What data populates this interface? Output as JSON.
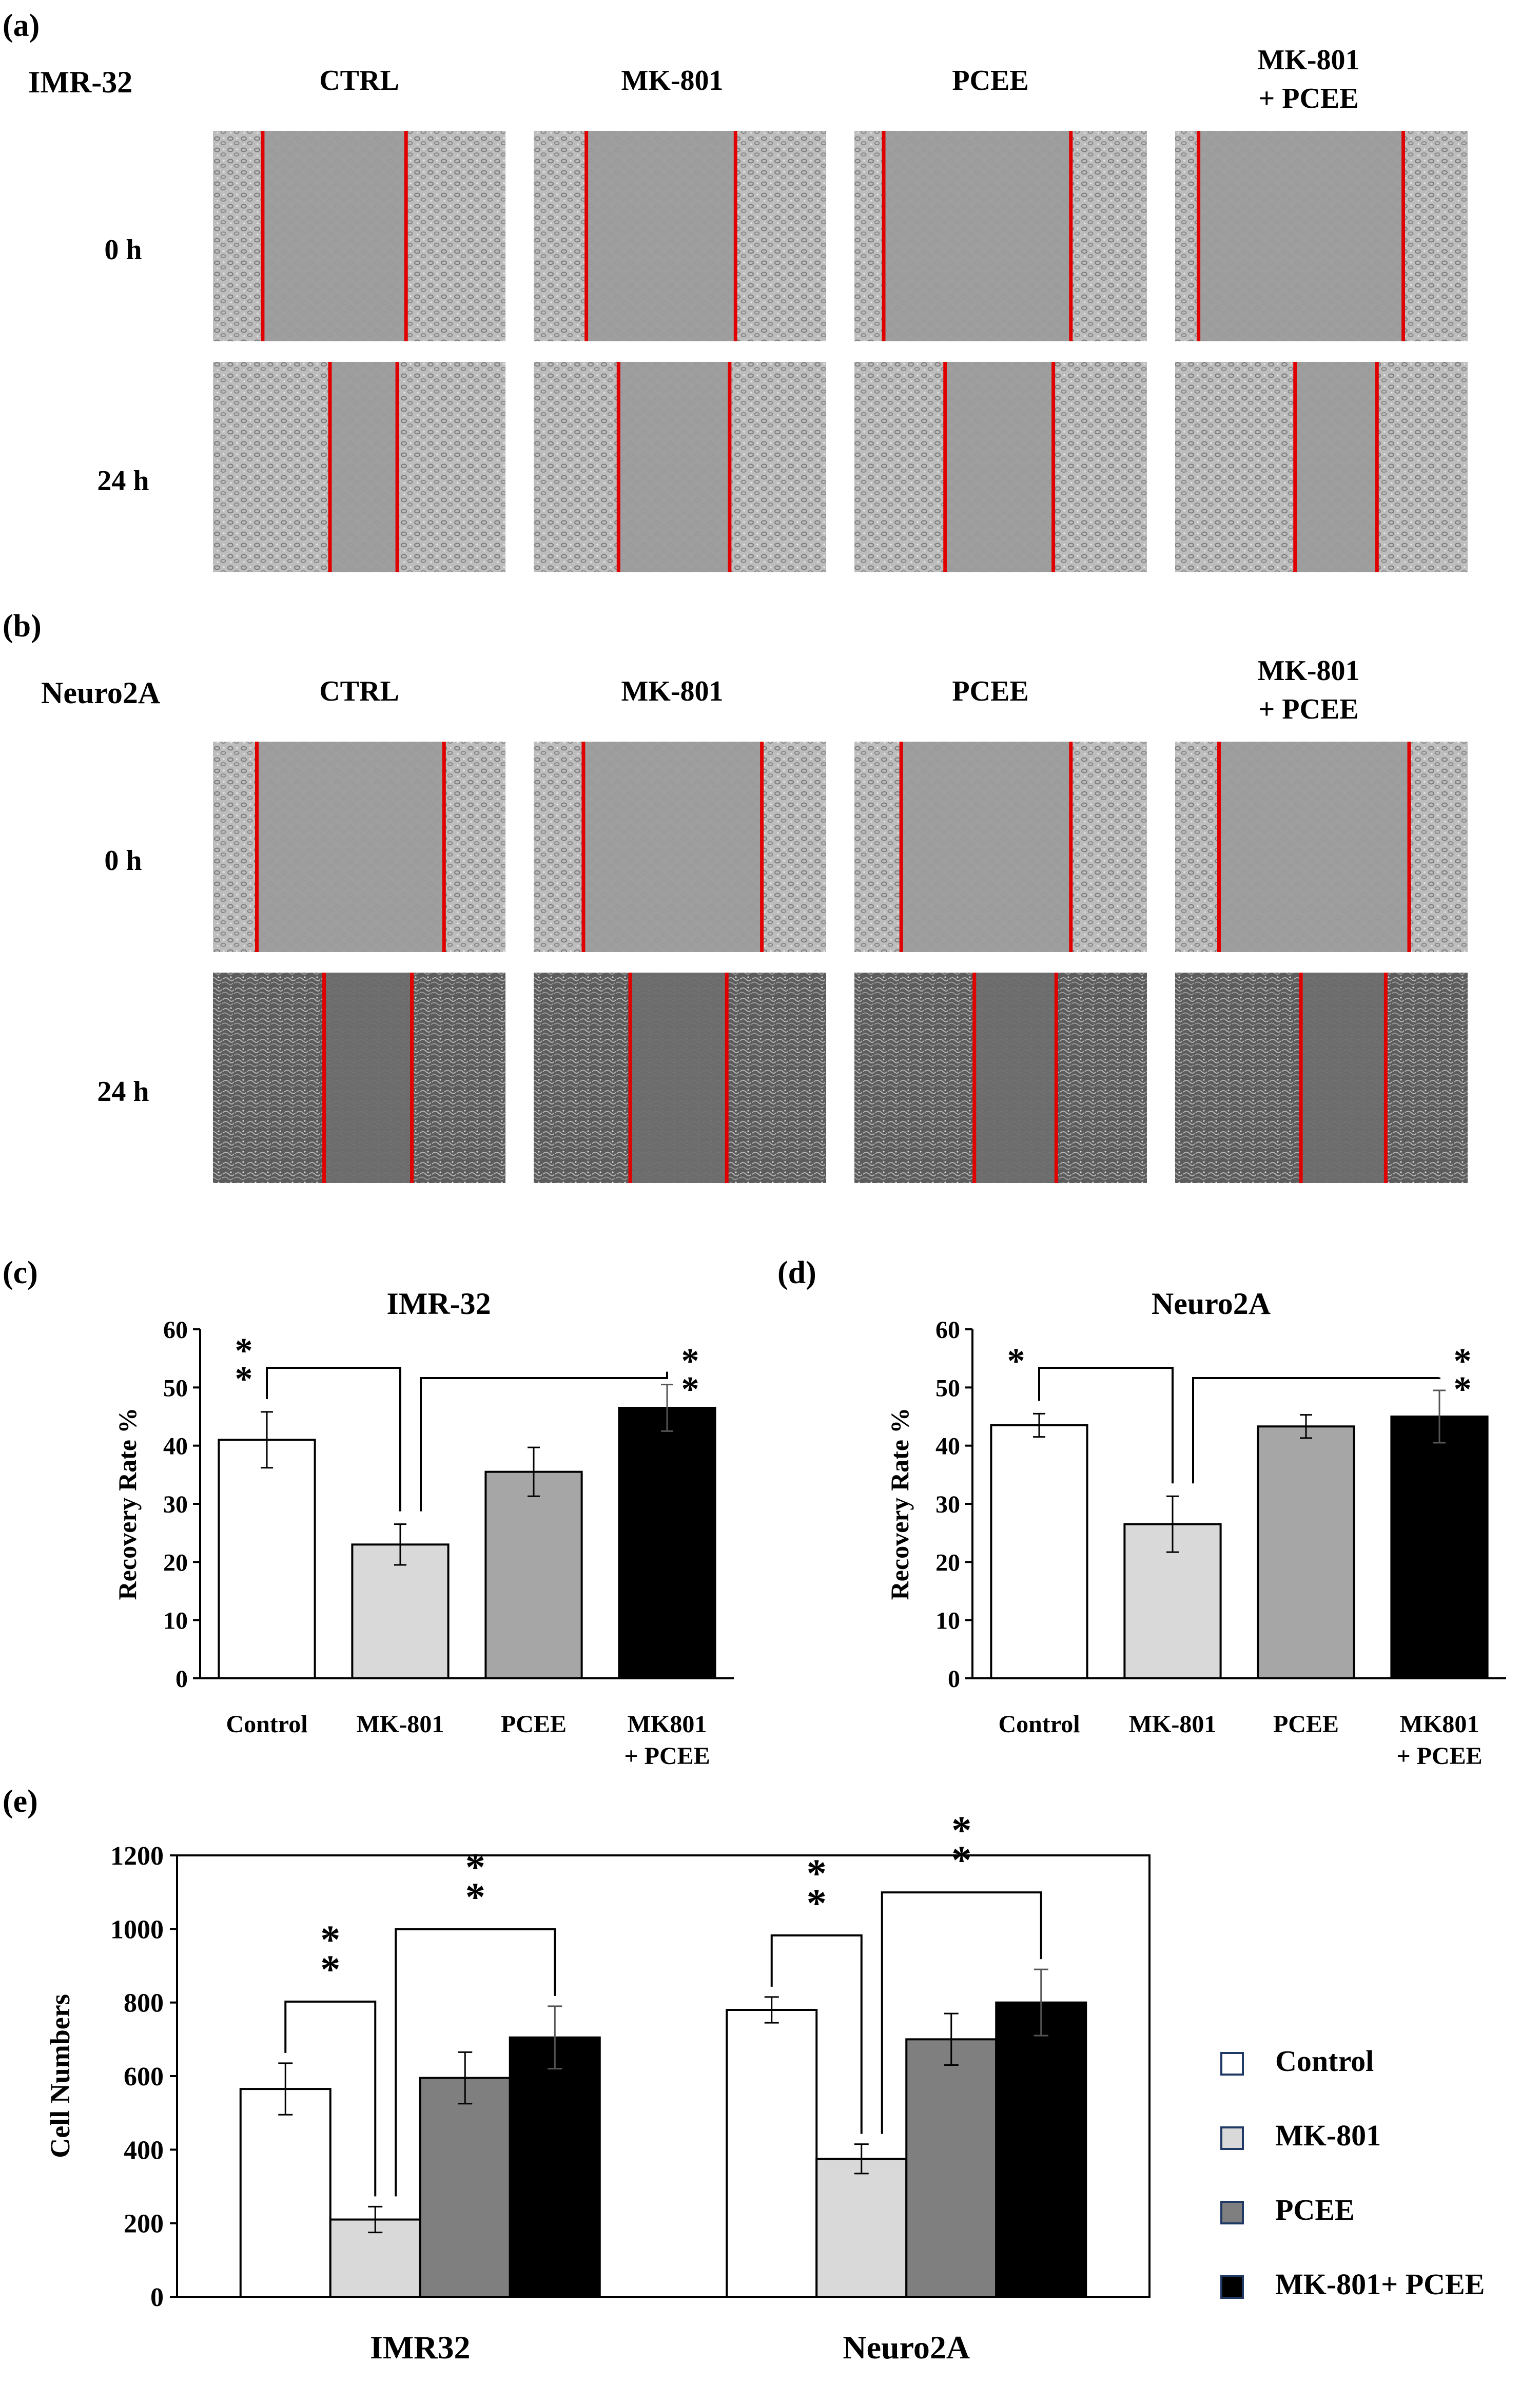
{
  "panels": {
    "a": {
      "label": "(a)",
      "cell_line": "IMR-32",
      "columns": [
        "CTRL",
        "MK-801",
        "PCEE",
        "MK-801",
        "+ PCEE"
      ],
      "rows": [
        "0 h",
        "24 h"
      ]
    },
    "b": {
      "label": "(b)",
      "cell_line": "Neuro2A",
      "columns": [
        "CTRL",
        "MK-801",
        "PCEE",
        "MK-801",
        "+ PCEE"
      ],
      "rows": [
        "0 h",
        "24 h"
      ]
    }
  },
  "colors": {
    "control": "#ffffff",
    "mk801": "#d9d9d9",
    "pcee": "#a6a6a6",
    "mk801_pcee": "#000000",
    "scratch_line": "#e00000"
  },
  "chart_data": [
    {
      "id": "c",
      "panel_label": "(c)",
      "type": "bar",
      "title": "IMR-32",
      "ylabel": "Recovery Rate %",
      "xlabel": "",
      "ylim": [
        0,
        60
      ],
      "yticks": [
        "0",
        "10",
        "20",
        "30",
        "40",
        "50",
        "60"
      ],
      "categories": [
        "Control",
        "MK-801",
        "PCEE",
        "MK801 + PCEE"
      ],
      "category_lines": [
        [
          "Control"
        ],
        [
          "MK-801"
        ],
        [
          "PCEE"
        ],
        [
          "MK801",
          "+ PCEE"
        ]
      ],
      "values": [
        41,
        23,
        35.5,
        46.5
      ],
      "errors": [
        4.8,
        3.5,
        4.2,
        4.0
      ],
      "significance": [
        {
          "from": 0,
          "to": 1,
          "marker": "* *"
        },
        {
          "from": 1,
          "to": 3,
          "marker": "* *"
        }
      ]
    },
    {
      "id": "d",
      "panel_label": "(d)",
      "type": "bar",
      "title": "Neuro2A",
      "ylabel": "Recovery Rate %",
      "xlabel": "",
      "ylim": [
        0,
        60
      ],
      "yticks": [
        "0",
        "10",
        "20",
        "30",
        "40",
        "50",
        "60"
      ],
      "categories": [
        "Control",
        "MK-801",
        "PCEE",
        "MK801 + PCEE"
      ],
      "category_lines": [
        [
          "Control"
        ],
        [
          "MK-801"
        ],
        [
          "PCEE"
        ],
        [
          "MK801",
          "+ PCEE"
        ]
      ],
      "values": [
        43.5,
        26.5,
        43.3,
        45
      ],
      "errors": [
        2,
        4.8,
        2,
        4.5
      ],
      "significance": [
        {
          "from": 0,
          "to": 1,
          "marker": "*"
        },
        {
          "from": 1,
          "to": 3,
          "marker": "* *"
        }
      ]
    },
    {
      "id": "e",
      "panel_label": "(e)",
      "type": "bar",
      "title": "",
      "ylabel": "Cell Numbers",
      "xlabel": "",
      "ylim": [
        0,
        1200
      ],
      "yticks": [
        "0",
        "200",
        "400",
        "600",
        "800",
        "1000",
        "1200"
      ],
      "categories": [
        "IMR32",
        "Neuro2A"
      ],
      "legend_position": "right",
      "series": [
        {
          "name": "Control",
          "values": [
            565,
            780
          ],
          "errors": [
            70,
            35
          ]
        },
        {
          "name": "MK-801",
          "values": [
            210,
            375
          ],
          "errors": [
            35,
            40
          ]
        },
        {
          "name": "PCEE",
          "values": [
            595,
            700
          ],
          "errors": [
            70,
            70
          ]
        },
        {
          "name": "MK-801+ PCEE",
          "values": [
            705,
            800
          ],
          "errors": [
            85,
            90
          ]
        }
      ],
      "significance": [
        {
          "group": 0,
          "from": 0,
          "to": 1,
          "marker": "* *"
        },
        {
          "group": 0,
          "from": 1,
          "to": 3,
          "marker": "* *"
        },
        {
          "group": 1,
          "from": 0,
          "to": 1,
          "marker": "* *"
        },
        {
          "group": 1,
          "from": 1,
          "to": 3,
          "marker": "* *"
        }
      ]
    }
  ]
}
